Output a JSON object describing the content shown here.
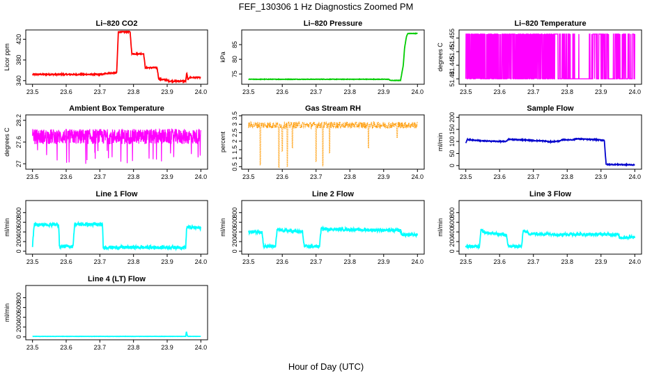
{
  "figure": {
    "title": "FEF_130306  1 Hz Diagnostics Zoomed PM",
    "xlabel": "Hour of Day (UTC)"
  },
  "chart_data": [
    {
      "type": "line",
      "title": "Li–820 CO2",
      "xlabel": "",
      "ylabel": "Licor ppm",
      "xlim": [
        23.5,
        24.0
      ],
      "ylim": [
        333,
        438
      ],
      "xticks": [
        "23.5",
        "23.6",
        "23.7",
        "23.8",
        "23.9",
        "24.0"
      ],
      "yticks": [
        340,
        380,
        420
      ],
      "grid": false,
      "color": "#ff0000",
      "noise": 1.2,
      "series": [
        {
          "x": [
            23.5,
            23.71,
            23.715,
            23.75,
            23.755,
            23.79,
            23.795,
            23.83,
            23.835,
            23.87,
            23.875,
            23.9,
            23.905,
            23.955,
            23.958,
            23.962,
            23.965,
            24.0
          ],
          "y": [
            352,
            352,
            354,
            355,
            434,
            434,
            392,
            392,
            365,
            365,
            343,
            341,
            339,
            339,
            355,
            340,
            346,
            346
          ]
        }
      ]
    },
    {
      "type": "line",
      "title": "Li–820 Pressure",
      "xlabel": "",
      "ylabel": "kPa",
      "xlim": [
        23.5,
        24.0
      ],
      "ylim": [
        71.5,
        90
      ],
      "xticks": [
        "23.5",
        "23.6",
        "23.7",
        "23.8",
        "23.9",
        "24.0"
      ],
      "yticks": [
        75,
        80,
        85
      ],
      "grid": false,
      "color": "#00cc00",
      "noise": 0.08,
      "series": [
        {
          "x": [
            23.5,
            23.84,
            23.915,
            23.92,
            23.95,
            23.958,
            23.962,
            23.968,
            23.972,
            24.0
          ],
          "y": [
            73.2,
            73.2,
            73.2,
            72.8,
            72.8,
            78,
            84,
            88,
            88.8,
            88.8
          ]
        }
      ]
    },
    {
      "type": "line",
      "title": "Li–820 Temperature",
      "xlabel": "",
      "ylabel": "degrees C",
      "xlim": [
        23.5,
        24.0
      ],
      "ylim": [
        51.438,
        51.458
      ],
      "xticks": [
        "23.5",
        "23.6",
        "23.7",
        "23.8",
        "23.9",
        "24.0"
      ],
      "yticks": [
        51.44,
        51.445,
        51.45,
        51.455
      ],
      "grid": false,
      "color": "#ff00ff",
      "pattern": "binary-flicker",
      "series": [
        {
          "name": "",
          "low": 51.44,
          "high": 51.4565,
          "dense_until": 23.76,
          "gap": [
            23.835,
            23.865
          ],
          "sparse_from": 23.865
        }
      ]
    },
    {
      "type": "line",
      "title": "Ambient Box Temperature",
      "xlabel": "",
      "ylabel": "degrees C",
      "xlim": [
        23.5,
        24.0
      ],
      "ylim": [
        26.85,
        28.35
      ],
      "xticks": [
        "23.5",
        "23.6",
        "23.7",
        "23.8",
        "23.9",
        "24.0"
      ],
      "yticks": [
        27.0,
        27.6,
        28.2
      ],
      "grid": false,
      "color": "#ff00ff",
      "pattern": "noise",
      "center": 27.75,
      "spread": 0.35
    },
    {
      "type": "line",
      "title": "Gas Stream RH",
      "xlabel": "",
      "ylabel": "percent",
      "xlim": [
        23.5,
        24.0
      ],
      "ylim": [
        0.35,
        3.55
      ],
      "xticks": [
        "23.5",
        "23.6",
        "23.7",
        "23.8",
        "23.9",
        "24.0"
      ],
      "yticks": [
        0.5,
        1.0,
        1.5,
        2.0,
        2.5,
        3.0,
        3.5
      ],
      "grid": false,
      "color": "#ff9900",
      "pattern": "noise-points",
      "center": 2.95,
      "spread": 0.2,
      "dips": [
        [
          23.535,
          0.6
        ],
        [
          23.59,
          0.45
        ],
        [
          23.6,
          1.4
        ],
        [
          23.615,
          0.5
        ],
        [
          23.63,
          1.6
        ],
        [
          23.7,
          0.8
        ],
        [
          23.72,
          0.55
        ],
        [
          23.74,
          1.3
        ],
        [
          23.855,
          1.6
        ],
        [
          23.94,
          2.2
        ]
      ]
    },
    {
      "type": "line",
      "title": "Sample Flow",
      "xlabel": "",
      "ylabel": "ml/min",
      "xlim": [
        23.5,
        24.0
      ],
      "ylim": [
        -15,
        210
      ],
      "xticks": [
        "23.5",
        "23.6",
        "23.7",
        "23.8",
        "23.9",
        "24.0"
      ],
      "yticks": [
        0,
        50,
        100,
        150,
        200
      ],
      "grid": false,
      "color": "#0000cc",
      "noise": 2,
      "series": [
        {
          "x": [
            23.5,
            23.505,
            23.55,
            23.6,
            23.62,
            23.625,
            23.7,
            23.74,
            23.745,
            23.78,
            23.785,
            23.82,
            23.825,
            23.9,
            23.91,
            23.915,
            24.0
          ],
          "y": [
            95,
            108,
            102,
            100,
            100,
            109,
            104,
            101,
            98,
            102,
            107,
            107,
            111,
            106,
            104,
            5,
            3
          ]
        }
      ]
    },
    {
      "type": "line",
      "title": "Line 1 Flow",
      "xlabel": "",
      "ylabel": "ml/min",
      "xlim": [
        23.5,
        24.0
      ],
      "ylim": [
        -60,
        1050
      ],
      "xticks": [
        "23.5",
        "23.6",
        "23.7",
        "23.8",
        "23.9",
        "24.0"
      ],
      "yticks": [
        0,
        200,
        400,
        600,
        800
      ],
      "grid": false,
      "color": "#00ffff",
      "noise": 35,
      "series": [
        {
          "x": [
            23.5,
            23.505,
            23.578,
            23.58,
            23.62,
            23.625,
            23.708,
            23.71,
            23.955,
            23.958,
            24.0
          ],
          "y": [
            120,
            550,
            550,
            100,
            100,
            560,
            550,
            80,
            80,
            500,
            480
          ]
        }
      ]
    },
    {
      "type": "line",
      "title": "Line 2 Flow",
      "xlabel": "",
      "ylabel": "ml/min",
      "xlim": [
        23.5,
        24.0
      ],
      "ylim": [
        -60,
        1050
      ],
      "xticks": [
        "23.5",
        "23.6",
        "23.7",
        "23.8",
        "23.9",
        "24.0"
      ],
      "yticks": [
        0,
        200,
        400,
        600,
        800
      ],
      "grid": false,
      "color": "#00ffff",
      "noise": 30,
      "series": [
        {
          "x": [
            23.5,
            23.54,
            23.545,
            23.58,
            23.585,
            23.66,
            23.665,
            23.71,
            23.715,
            23.95,
            23.955,
            24.0
          ],
          "y": [
            400,
            400,
            100,
            100,
            440,
            400,
            100,
            100,
            460,
            430,
            340,
            340
          ]
        }
      ]
    },
    {
      "type": "line",
      "title": "Line 3 Flow",
      "xlabel": "",
      "ylabel": "ml/min",
      "xlim": [
        23.5,
        24.0
      ],
      "ylim": [
        -60,
        1050
      ],
      "xticks": [
        "23.5",
        "23.6",
        "23.7",
        "23.8",
        "23.9",
        "24.0"
      ],
      "yticks": [
        0,
        200,
        400,
        600,
        800
      ],
      "grid": false,
      "color": "#00ffff",
      "noise": 30,
      "series": [
        {
          "x": [
            23.5,
            23.54,
            23.545,
            23.56,
            23.62,
            23.625,
            23.665,
            23.67,
            23.69,
            23.8,
            23.95,
            23.955,
            24.0
          ],
          "y": [
            100,
            100,
            450,
            380,
            340,
            100,
            100,
            430,
            360,
            350,
            350,
            280,
            300
          ]
        }
      ]
    },
    {
      "type": "line",
      "title": "Line 4 (LT) Flow",
      "xlabel": "",
      "ylabel": "ml/min",
      "xlim": [
        23.5,
        24.0
      ],
      "ylim": [
        -60,
        1050
      ],
      "xticks": [
        "23.5",
        "23.6",
        "23.7",
        "23.8",
        "23.9",
        "24.0"
      ],
      "yticks": [
        0,
        200,
        400,
        600,
        800
      ],
      "grid": false,
      "color": "#00ffff",
      "noise": 2,
      "series": [
        {
          "x": [
            23.5,
            23.955,
            23.957,
            23.96,
            23.962,
            24.0
          ],
          "y": [
            10,
            10,
            110,
            20,
            10,
            10
          ]
        }
      ]
    }
  ]
}
